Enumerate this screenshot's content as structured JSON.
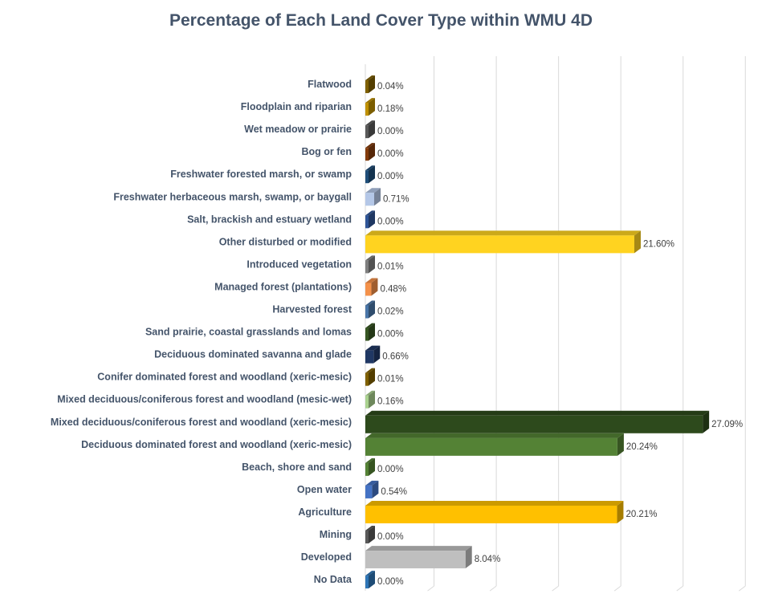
{
  "chart_data": {
    "type": "bar",
    "orientation": "horizontal",
    "style": "3d",
    "title": "Percentage of Each Land Cover Type within WMU 4D",
    "xlabel": "",
    "ylabel": "",
    "xlim": [
      0,
      30
    ],
    "grid": true,
    "legend": "none",
    "categories": [
      "Flatwood",
      "Floodplain and riparian",
      "Wet meadow or prairie",
      "Bog or fen",
      "Freshwater forested  marsh, or swamp",
      "Freshwater herbaceous marsh, swamp, or baygall",
      "Salt, brackish and estuary wetland",
      "Other disturbed or modified",
      "Introduced vegetation",
      "Managed forest (plantations)",
      "Harvested forest",
      "Sand prairie, coastal grasslands and lomas",
      "Deciduous dominated savanna and glade",
      "Conifer dominated forest and woodland (xeric-mesic)",
      "Mixed deciduous/coniferous forest and woodland (mesic-wet)",
      "Mixed deciduous/coniferous forest and woodland  (xeric-mesic)",
      "Deciduous dominated forest and woodland (xeric-mesic)",
      "Beach, shore and sand",
      "Open water",
      "Agriculture",
      "Mining",
      "Developed",
      "No Data"
    ],
    "values": [
      0.04,
      0.18,
      0.0,
      0.0,
      0.0,
      0.71,
      0.0,
      21.6,
      0.01,
      0.48,
      0.02,
      0.0,
      0.66,
      0.01,
      0.16,
      27.09,
      20.24,
      0.0,
      0.54,
      20.21,
      0.0,
      8.04,
      0.0
    ],
    "labels": [
      "0.04%",
      "0.18%",
      "0.00%",
      "0.00%",
      "0.00%",
      "0.71%",
      "0.00%",
      "21.60%",
      "0.01%",
      "0.48%",
      "0.02%",
      "0.00%",
      "0.66%",
      "0.01%",
      "0.16%",
      "27.09%",
      "20.24%",
      "0.00%",
      "0.54%",
      "20.21%",
      "0.00%",
      "8.04%",
      "0.00%"
    ],
    "colors": [
      "#7f6000",
      "#bf9000",
      "#595959",
      "#843c0c",
      "#1f4e79",
      "#b4c7e7",
      "#2f5597",
      "#ffd320",
      "#7f7f7f",
      "#f4914a",
      "#4a76a8",
      "#375623",
      "#203864",
      "#7f6000",
      "#a9d18e",
      "#2d4a1c",
      "#548235",
      "#548235",
      "#4472c4",
      "#ffc000",
      "#595959",
      "#bfbfbf",
      "#2e75b6"
    ]
  }
}
